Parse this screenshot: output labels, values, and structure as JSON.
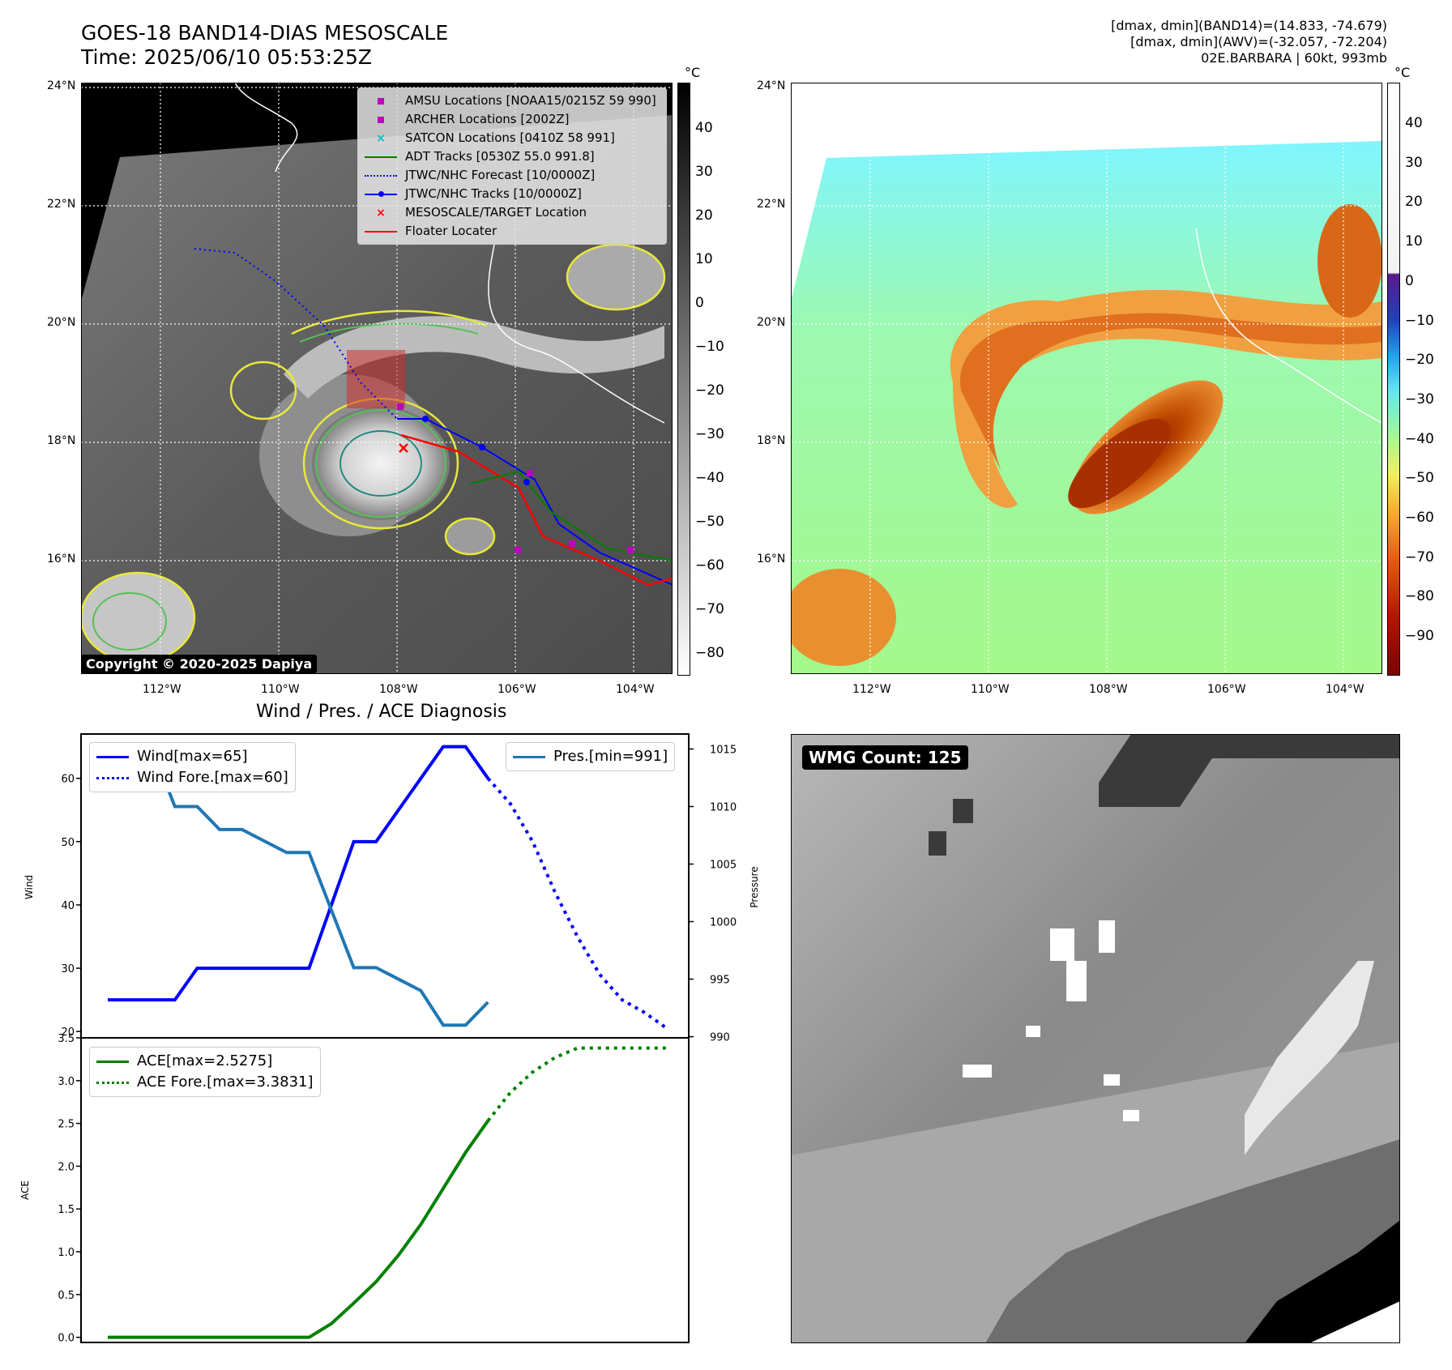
{
  "header": {
    "title_line1": "GOES-18 BAND14-DIAS MESOSCALE",
    "title_line2": "Time: 2025/06/10 05:53:25Z",
    "info_line1": "[dmax, dmin](BAND14)=(14.833, -74.679)",
    "info_line2": "[dmax, dmin](AWV)=(-32.057, -72.204)",
    "info_line3": "02E.BARBARA | 60kt, 993mb"
  },
  "map_axes": {
    "lat_labels": [
      "24°N",
      "22°N",
      "20°N",
      "18°N",
      "16°N"
    ],
    "lon_labels": [
      "112°W",
      "110°W",
      "108°W",
      "106°W",
      "104°W"
    ]
  },
  "ir_panel": {
    "colorbar_unit": "°C",
    "colorbar_ticks": [
      "40",
      "30",
      "20",
      "10",
      "0",
      "−10",
      "−20",
      "−30",
      "−40",
      "−50",
      "−60",
      "−70",
      "−80"
    ],
    "copyright": "Copyright © 2020-2025 Dapiya",
    "legend": [
      {
        "label": "AMSU Locations [NOAA15/0215Z 59 990]",
        "color": "#bf00bf",
        "marker": "square"
      },
      {
        "label": "ARCHER Locations [2002Z]",
        "color": "#bf00bf",
        "marker": "square"
      },
      {
        "label": "SATCON Locations [0410Z 58 991]",
        "color": "#00bfbf",
        "marker": "x"
      },
      {
        "label": "ADT Tracks [0530Z 55.0 991.8]",
        "color": "#008000",
        "marker": "line"
      },
      {
        "label": "JTWC/NHC Forecast [10/0000Z]",
        "color": "#0000ff",
        "marker": "dotted"
      },
      {
        "label": "JTWC/NHC Tracks [10/0000Z]",
        "color": "#0000ff",
        "marker": "line-dot"
      },
      {
        "label": "MESOSCALE/TARGET Location",
        "color": "#ff0000",
        "marker": "x"
      },
      {
        "label": "Floater Locater",
        "color": "#ff0000",
        "marker": "line"
      }
    ]
  },
  "awv_panel": {
    "colorbar_unit": "°C",
    "colorbar_ticks": [
      "40",
      "30",
      "20",
      "10",
      "0",
      "−10",
      "−20",
      "−30",
      "−40",
      "−50",
      "−60",
      "−70",
      "−80",
      "−90"
    ]
  },
  "wmg_panel": {
    "badge": "WMG Count: 125"
  },
  "diagnosis": {
    "title": "Wind / Pres. / ACE Diagnosis",
    "wind_ylabel": "Wind",
    "pres_ylabel": "Pressure",
    "ace_ylabel": "ACE",
    "wind_legend": [
      "Wind[max=65]",
      "Wind Fore.[max=60]"
    ],
    "pres_legend": [
      "Pres.[min=991]"
    ],
    "ace_legend": [
      "ACE[max=2.5275]",
      "ACE Fore.[max=3.3831]"
    ]
  },
  "chart_data": [
    {
      "type": "line",
      "name": "Wind / Pressure",
      "x": [
        0,
        1,
        2,
        3,
        4,
        5,
        6,
        7,
        8,
        9,
        10,
        11,
        12,
        13,
        14,
        15,
        16,
        17,
        18,
        19,
        20,
        21,
        22,
        23,
        24,
        25
      ],
      "series": [
        {
          "name": "Wind[max=65]",
          "axis": "left",
          "style": "solid",
          "color": "#0000ff",
          "x": [
            0,
            1,
            2,
            3,
            4,
            5,
            6,
            7,
            8,
            9,
            10,
            11,
            12,
            13,
            14,
            15,
            16,
            17
          ],
          "values": [
            25,
            25,
            25,
            25,
            30,
            30,
            30,
            30,
            30,
            30,
            40,
            50,
            50,
            55,
            60,
            65,
            65,
            60
          ]
        },
        {
          "name": "Wind Fore.[max=60]",
          "axis": "left",
          "style": "dotted",
          "color": "#0000ff",
          "x": [
            17,
            18,
            19,
            20,
            21,
            22,
            23,
            24,
            25
          ],
          "values": [
            60,
            56,
            50,
            42,
            35,
            29,
            25,
            23,
            20.5
          ]
        },
        {
          "name": "Pres.[min=991]",
          "axis": "right",
          "style": "solid",
          "color": "#1f77b4",
          "x": [
            0,
            1,
            2,
            3,
            4,
            5,
            6,
            7,
            8,
            9,
            10,
            11,
            12,
            13,
            14,
            15,
            16,
            17
          ],
          "values": [
            1015,
            1015,
            1015,
            1010,
            1010,
            1008,
            1008,
            1007,
            1006,
            1006,
            1001,
            996,
            996,
            995,
            994,
            991,
            991,
            993
          ]
        }
      ],
      "ylim_left": [
        19,
        67
      ],
      "ylim_right": [
        989.9,
        1016.3
      ],
      "yticks_left": [
        20,
        30,
        40,
        50,
        60
      ],
      "yticks_right": [
        990,
        995,
        1000,
        1005,
        1010,
        1015
      ]
    },
    {
      "type": "line",
      "name": "ACE",
      "series": [
        {
          "name": "ACE[max=2.5275]",
          "style": "solid",
          "color": "#008000",
          "x": [
            0,
            1,
            2,
            3,
            4,
            5,
            6,
            7,
            8,
            9,
            10,
            11,
            12,
            13,
            14,
            15,
            16,
            17
          ],
          "values": [
            0,
            0,
            0,
            0,
            0,
            0,
            0,
            0,
            0,
            0,
            0.16,
            0.4,
            0.65,
            0.96,
            1.32,
            1.74,
            2.16,
            2.53
          ]
        },
        {
          "name": "ACE Fore.[max=3.3831]",
          "style": "dotted",
          "color": "#008000",
          "x": [
            17,
            18,
            19,
            20,
            21,
            22,
            23,
            24,
            25
          ],
          "values": [
            2.53,
            2.86,
            3.1,
            3.27,
            3.38,
            3.38,
            3.38,
            3.38,
            3.38
          ]
        }
      ],
      "ylim": [
        -0.06,
        3.5
      ],
      "yticks": [
        "0.0",
        "0.5",
        "1.0",
        "1.5",
        "2.0",
        "2.5",
        "3.0",
        "3.5"
      ]
    }
  ]
}
